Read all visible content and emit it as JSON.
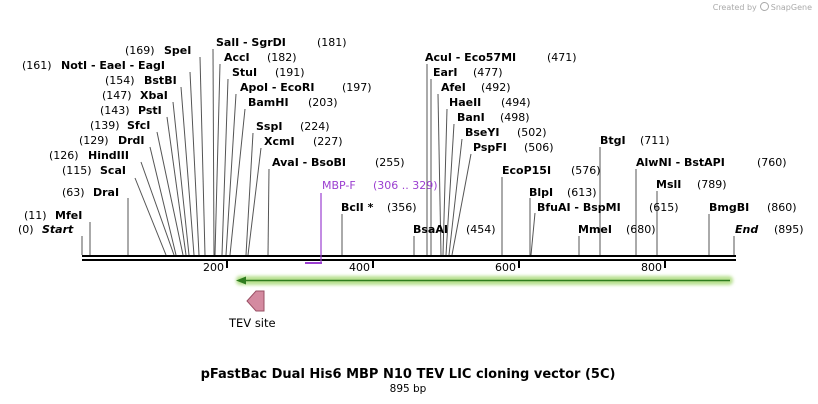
{
  "credit": {
    "prefix": "Created by",
    "brand": "SnapGene"
  },
  "title": "pFastBac Dual His6 MBP N10 TEV LIC cloning vector (5C)",
  "subtitle": "895 bp",
  "colors": {
    "primer": "#9b3fd0",
    "feature_arrow": "#2f7d1f",
    "feature_glow": "#b8e090",
    "tev": "#d48aa0",
    "backbone": "#000000"
  },
  "ruler": [
    {
      "pos": 200,
      "label": "200"
    },
    {
      "pos": 400,
      "label": "400"
    },
    {
      "pos": 600,
      "label": "600"
    },
    {
      "pos": 800,
      "label": "800"
    }
  ],
  "sites": [
    {
      "name": "Start",
      "pos": 0,
      "label": "(0)"
    },
    {
      "name": "MfeI",
      "pos": 11,
      "label": "(11)"
    },
    {
      "name": "DraI",
      "pos": 63,
      "label": "(63)"
    },
    {
      "name": "ScaI",
      "pos": 115,
      "label": "(115)"
    },
    {
      "name": "HindIII",
      "pos": 126,
      "label": "(126)"
    },
    {
      "name": "DrdI",
      "pos": 129,
      "label": "(129)"
    },
    {
      "name": "SfcI",
      "pos": 139,
      "label": "(139)"
    },
    {
      "name": "PstI",
      "pos": 143,
      "label": "(143)"
    },
    {
      "name": "XbaI",
      "pos": 147,
      "label": "(147)"
    },
    {
      "name": "BstBI",
      "pos": 154,
      "label": "(154)"
    },
    {
      "name": "NotI - EaeI - EagI",
      "pos": 161,
      "label": "(161)"
    },
    {
      "name": "SpeI",
      "pos": 169,
      "label": "(169)"
    },
    {
      "name": "SalI - SgrDI",
      "pos": 181,
      "label": "(181)"
    },
    {
      "name": "AccI",
      "pos": 182,
      "label": "(182)"
    },
    {
      "name": "StuI",
      "pos": 191,
      "label": "(191)"
    },
    {
      "name": "ApoI - EcoRI",
      "pos": 197,
      "label": "(197)"
    },
    {
      "name": "BamHI",
      "pos": 203,
      "label": "(203)"
    },
    {
      "name": "SspI",
      "pos": 224,
      "label": "(224)"
    },
    {
      "name": "XcmI",
      "pos": 227,
      "label": "(227)"
    },
    {
      "name": "AvaI - BsoBI",
      "pos": 255,
      "label": "(255)"
    },
    {
      "name": "BclI *",
      "pos": 356,
      "label": "(356)"
    },
    {
      "name": "BsaAI",
      "pos": 454,
      "label": "(454)"
    },
    {
      "name": "AcuI - Eco57MI",
      "pos": 471,
      "label": "(471)"
    },
    {
      "name": "EarI",
      "pos": 477,
      "label": "(477)"
    },
    {
      "name": "AfeI",
      "pos": 492,
      "label": "(492)"
    },
    {
      "name": "HaeII",
      "pos": 494,
      "label": "(494)"
    },
    {
      "name": "BanI",
      "pos": 498,
      "label": "(498)"
    },
    {
      "name": "BseYI",
      "pos": 502,
      "label": "(502)"
    },
    {
      "name": "PspFI",
      "pos": 506,
      "label": "(506)"
    },
    {
      "name": "EcoP15I",
      "pos": 576,
      "label": "(576)"
    },
    {
      "name": "BlpI",
      "pos": 613,
      "label": "(613)"
    },
    {
      "name": "BfuAI - BspMI",
      "pos": 615,
      "label": "(615)"
    },
    {
      "name": "MmeI",
      "pos": 680,
      "label": "(680)"
    },
    {
      "name": "BtgI",
      "pos": 711,
      "label": "(711)"
    },
    {
      "name": "AlwNI - BstAPI",
      "pos": 760,
      "label": "(760)"
    },
    {
      "name": "MslI",
      "pos": 789,
      "label": "(789)"
    },
    {
      "name": "BmgBI",
      "pos": 860,
      "label": "(860)"
    },
    {
      "name": "End",
      "pos": 895,
      "label": "(895)"
    }
  ],
  "primer": {
    "name": "MBP-F",
    "range": "(306 .. 329)"
  },
  "feature": {
    "name": "TEV site"
  }
}
